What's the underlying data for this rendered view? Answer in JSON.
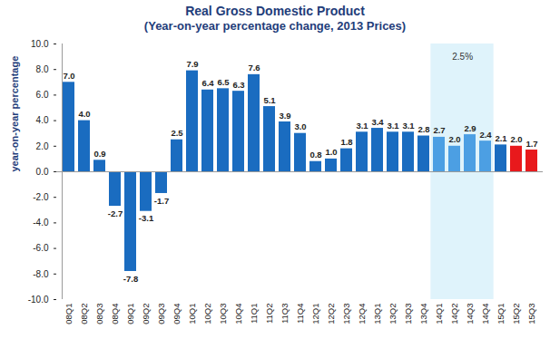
{
  "chart_data": {
    "type": "bar",
    "title": "Real Gross Domestic Product",
    "subtitle": "(Year-on-year percentage change, 2013 Prices)",
    "ylabel": "year-on-year percentage",
    "categories": [
      "08Q1",
      "08Q2",
      "08Q3",
      "08Q4",
      "09Q1",
      "09Q2",
      "09Q3",
      "09Q4",
      "10Q1",
      "10Q2",
      "10Q3",
      "10Q4",
      "11Q1",
      "11Q2",
      "11Q3",
      "11Q4",
      "12Q1",
      "12Q2",
      "12Q3",
      "12Q4",
      "13Q1",
      "13Q2",
      "13Q3",
      "13Q4",
      "14Q1",
      "14Q2",
      "14Q3",
      "14Q4",
      "15Q1",
      "15Q2",
      "15Q3"
    ],
    "values": [
      7.0,
      4.0,
      0.9,
      -2.7,
      -7.8,
      -3.1,
      -1.7,
      2.5,
      7.9,
      6.4,
      6.5,
      6.3,
      7.6,
      5.1,
      3.9,
      3.0,
      0.8,
      1.0,
      1.8,
      3.1,
      3.4,
      3.1,
      3.1,
      2.8,
      2.7,
      2.0,
      2.9,
      2.4,
      2.1,
      2.0,
      1.7
    ],
    "value_labels": [
      "7.0",
      "4.0",
      "0.9",
      "-2.7",
      "-7.8",
      "-3.1",
      "-1.7",
      "2.5",
      "7.9",
      "6.4",
      "6.5",
      "6.3",
      "7.6",
      "5.1",
      "3.9",
      "3.0",
      "0.8",
      "1.0",
      "1.8",
      "3.1",
      "3.4",
      "3.1",
      "3.1",
      "2.8",
      "2.7",
      "2.0",
      "2.9",
      "2.4",
      "2.1",
      "2.0",
      "1.7"
    ],
    "colors": [
      "#1a6cc0",
      "#1a6cc0",
      "#1a6cc0",
      "#1a6cc0",
      "#1a6cc0",
      "#1a6cc0",
      "#1a6cc0",
      "#1a6cc0",
      "#1a6cc0",
      "#1a6cc0",
      "#1a6cc0",
      "#1a6cc0",
      "#1a6cc0",
      "#1a6cc0",
      "#1a6cc0",
      "#1a6cc0",
      "#1a6cc0",
      "#1a6cc0",
      "#1a6cc0",
      "#1a6cc0",
      "#1a6cc0",
      "#1a6cc0",
      "#1a6cc0",
      "#1a6cc0",
      "#4c9fe3",
      "#4c9fe3",
      "#4c9fe3",
      "#4c9fe3",
      "#1a6cc0",
      "#e8191c",
      "#e8191c"
    ],
    "data_labels": true,
    "grid": false,
    "ylim": [
      -10,
      10
    ],
    "yticks": [
      {
        "value": -10,
        "label": "-10.0"
      },
      {
        "value": -8,
        "label": "-8.0"
      },
      {
        "value": -6,
        "label": "-6.0"
      },
      {
        "value": -4,
        "label": "-4.0"
      },
      {
        "value": -2,
        "label": "-2.0"
      },
      {
        "value": 0,
        "label": "0.0"
      },
      {
        "value": 2,
        "label": "2.0"
      },
      {
        "value": 4,
        "label": "4.0"
      },
      {
        "value": 6,
        "label": "6.0"
      },
      {
        "value": 8,
        "label": "8.0"
      },
      {
        "value": 10,
        "label": "10.0"
      }
    ],
    "annotations": [
      {
        "text": "2.5%",
        "from": "14Q1",
        "to": "14Q4"
      }
    ]
  }
}
